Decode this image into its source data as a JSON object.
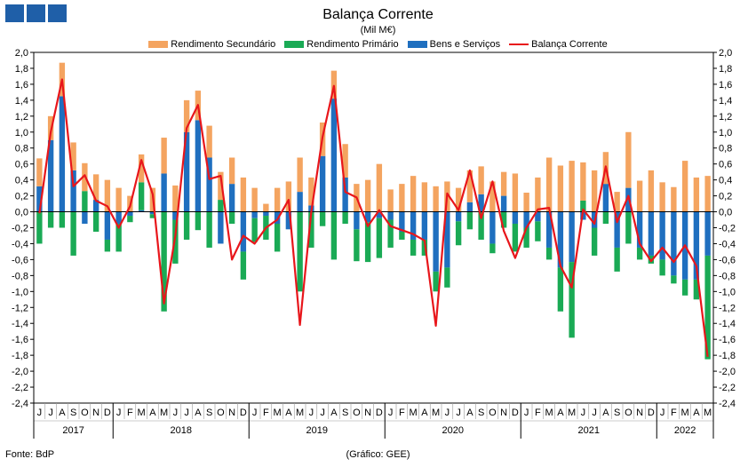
{
  "logo": {
    "name": "logo-blocks"
  },
  "title": "Balança Corrente",
  "subtitle": "(Mil M€)",
  "footer": {
    "source": "Fonte: BdP",
    "credit": "(Gráfico: GEE)"
  },
  "colors": {
    "secundario": "#f4a460",
    "primario": "#1aaa55",
    "bens": "#1f6fbf",
    "balanca": "#e8161b"
  },
  "chart_data": {
    "type": "bar",
    "stacked": true,
    "title": "Balança Corrente",
    "subtitle": "(Mil M€)",
    "legend_position": "top",
    "ylim": [
      -2.4,
      2.0
    ],
    "yticks": [
      "2,0",
      "1,8",
      "1,6",
      "1,4",
      "1,2",
      "1,0",
      "0,8",
      "0,6",
      "0,4",
      "0,2",
      "0,0",
      "-0,2",
      "-0,4",
      "-0,6",
      "-0,8",
      "-1,0",
      "-1,2",
      "-1,4",
      "-1,6",
      "-1,8",
      "-2,0",
      "-2,2",
      "-2,4"
    ],
    "categories": [
      "J",
      "J",
      "A",
      "S",
      "O",
      "N",
      "D",
      "J",
      "F",
      "M",
      "A",
      "M",
      "J",
      "J",
      "A",
      "S",
      "O",
      "N",
      "D",
      "J",
      "F",
      "M",
      "A",
      "M",
      "J",
      "J",
      "A",
      "S",
      "O",
      "N",
      "D",
      "J",
      "F",
      "M",
      "A",
      "M",
      "J",
      "J",
      "A",
      "S",
      "O",
      "N",
      "D",
      "J",
      "F",
      "M",
      "A",
      "M",
      "J",
      "J",
      "A",
      "S",
      "O",
      "N",
      "D",
      "J",
      "F",
      "M",
      "A",
      "M"
    ],
    "year_labels": [
      {
        "label": "2017",
        "start": 0,
        "end": 6
      },
      {
        "label": "2018",
        "start": 7,
        "end": 18
      },
      {
        "label": "2019",
        "start": 19,
        "end": 30
      },
      {
        "label": "2020",
        "start": 31,
        "end": 42
      },
      {
        "label": "2021",
        "start": 43,
        "end": 54
      },
      {
        "label": "2022",
        "start": 55,
        "end": 59
      }
    ],
    "series": [
      {
        "name": "Rendimento Secundário",
        "kind": "bar",
        "values": [
          0.35,
          0.3,
          0.42,
          0.35,
          0.35,
          0.32,
          0.4,
          0.3,
          0.2,
          0.35,
          0.3,
          0.45,
          0.33,
          0.4,
          0.37,
          0.4,
          0.35,
          0.33,
          0.43,
          0.3,
          0.1,
          0.3,
          0.38,
          0.43,
          0.35,
          0.42,
          0.35,
          0.42,
          0.35,
          0.4,
          0.6,
          0.28,
          0.35,
          0.45,
          0.37,
          0.32,
          0.38,
          0.3,
          0.4,
          0.35,
          0.38,
          0.3,
          0.48,
          0.24,
          0.43,
          0.68,
          0.58,
          0.64,
          0.48,
          0.52,
          0.4,
          0.25,
          0.7,
          0.39,
          0.52,
          0.37,
          0.31,
          0.64,
          0.43,
          0.45
        ]
      },
      {
        "name": "Rendimento Primário",
        "kind": "bar",
        "values": [
          -0.4,
          -0.2,
          -0.2,
          -0.55,
          0.26,
          -0.25,
          -0.15,
          -0.35,
          -0.08,
          0.35,
          -0.05,
          -1.25,
          -0.55,
          -0.35,
          -0.23,
          -0.45,
          0.15,
          -0.15,
          -0.35,
          -0.3,
          -0.3,
          -0.35,
          0.0,
          -1.0,
          -0.45,
          -0.18,
          -0.6,
          -0.15,
          -0.4,
          -0.5,
          -0.5,
          -0.35,
          -0.1,
          -0.2,
          -0.2,
          -0.25,
          -0.25,
          -0.3,
          -0.22,
          -0.35,
          -0.12,
          -0.2,
          -0.35,
          -0.25,
          -0.25,
          -0.15,
          -0.55,
          -0.95,
          0.14,
          -0.35,
          -0.15,
          -0.3,
          -0.4,
          -0.15,
          -0.1,
          -0.2,
          -0.1,
          -0.2,
          -0.25,
          -1.3
        ]
      },
      {
        "name": "Bens e Serviços",
        "kind": "bar",
        "values": [
          0.32,
          0.9,
          1.45,
          0.52,
          -0.15,
          0.15,
          -0.35,
          -0.15,
          -0.05,
          0.02,
          -0.03,
          0.48,
          -0.1,
          1.0,
          1.15,
          0.68,
          -0.4,
          0.35,
          -0.5,
          -0.08,
          -0.05,
          -0.15,
          -0.22,
          0.25,
          0.08,
          0.7,
          1.42,
          0.43,
          -0.22,
          -0.13,
          -0.08,
          -0.1,
          -0.25,
          -0.35,
          -0.35,
          -0.75,
          -0.7,
          -0.12,
          0.12,
          0.22,
          -0.4,
          0.2,
          -0.15,
          -0.2,
          -0.12,
          -0.45,
          -0.7,
          -0.63,
          -0.1,
          -0.2,
          0.35,
          -0.45,
          0.3,
          -0.45,
          -0.55,
          -0.6,
          -0.8,
          -0.85,
          -0.85,
          -0.55
        ]
      },
      {
        "name": "Balança Corrente",
        "kind": "line",
        "values": [
          -0.02,
          1.0,
          1.66,
          0.32,
          0.46,
          0.14,
          0.07,
          -0.2,
          0.07,
          0.65,
          0.22,
          -1.15,
          -0.3,
          1.05,
          1.34,
          0.41,
          0.45,
          -0.6,
          -0.3,
          -0.4,
          -0.2,
          -0.1,
          0.15,
          -1.42,
          0.0,
          0.94,
          1.58,
          0.25,
          0.18,
          -0.18,
          0.02,
          -0.18,
          -0.23,
          -0.28,
          -0.36,
          -1.43,
          0.23,
          0.02,
          0.52,
          -0.08,
          0.38,
          -0.24,
          -0.58,
          -0.2,
          0.03,
          0.05,
          -0.68,
          -0.95,
          0.03,
          -0.15,
          0.57,
          -0.13,
          0.2,
          -0.4,
          -0.62,
          -0.45,
          -0.63,
          -0.42,
          -0.68,
          -1.82
        ]
      }
    ]
  }
}
